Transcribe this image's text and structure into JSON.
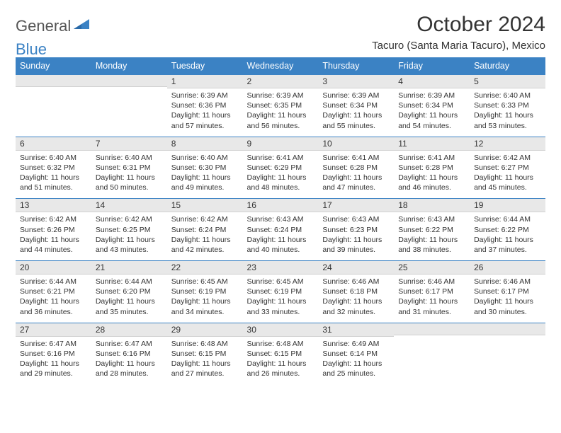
{
  "logo": {
    "textA": "General",
    "textB": "Blue"
  },
  "title": "October 2024",
  "location": "Tacuro (Santa Maria Tacuro), Mexico",
  "colors": {
    "header_bg": "#3b82c4",
    "header_fg": "#ffffff",
    "daynum_bg": "#e8e8e8",
    "rule": "#3b82c4",
    "text": "#333333"
  },
  "day_names": [
    "Sunday",
    "Monday",
    "Tuesday",
    "Wednesday",
    "Thursday",
    "Friday",
    "Saturday"
  ],
  "weeks": [
    [
      null,
      null,
      {
        "n": "1",
        "sr": "6:39 AM",
        "ss": "6:36 PM",
        "dl": "11 hours and 57 minutes."
      },
      {
        "n": "2",
        "sr": "6:39 AM",
        "ss": "6:35 PM",
        "dl": "11 hours and 56 minutes."
      },
      {
        "n": "3",
        "sr": "6:39 AM",
        "ss": "6:34 PM",
        "dl": "11 hours and 55 minutes."
      },
      {
        "n": "4",
        "sr": "6:39 AM",
        "ss": "6:34 PM",
        "dl": "11 hours and 54 minutes."
      },
      {
        "n": "5",
        "sr": "6:40 AM",
        "ss": "6:33 PM",
        "dl": "11 hours and 53 minutes."
      }
    ],
    [
      {
        "n": "6",
        "sr": "6:40 AM",
        "ss": "6:32 PM",
        "dl": "11 hours and 51 minutes."
      },
      {
        "n": "7",
        "sr": "6:40 AM",
        "ss": "6:31 PM",
        "dl": "11 hours and 50 minutes."
      },
      {
        "n": "8",
        "sr": "6:40 AM",
        "ss": "6:30 PM",
        "dl": "11 hours and 49 minutes."
      },
      {
        "n": "9",
        "sr": "6:41 AM",
        "ss": "6:29 PM",
        "dl": "11 hours and 48 minutes."
      },
      {
        "n": "10",
        "sr": "6:41 AM",
        "ss": "6:28 PM",
        "dl": "11 hours and 47 minutes."
      },
      {
        "n": "11",
        "sr": "6:41 AM",
        "ss": "6:28 PM",
        "dl": "11 hours and 46 minutes."
      },
      {
        "n": "12",
        "sr": "6:42 AM",
        "ss": "6:27 PM",
        "dl": "11 hours and 45 minutes."
      }
    ],
    [
      {
        "n": "13",
        "sr": "6:42 AM",
        "ss": "6:26 PM",
        "dl": "11 hours and 44 minutes."
      },
      {
        "n": "14",
        "sr": "6:42 AM",
        "ss": "6:25 PM",
        "dl": "11 hours and 43 minutes."
      },
      {
        "n": "15",
        "sr": "6:42 AM",
        "ss": "6:24 PM",
        "dl": "11 hours and 42 minutes."
      },
      {
        "n": "16",
        "sr": "6:43 AM",
        "ss": "6:24 PM",
        "dl": "11 hours and 40 minutes."
      },
      {
        "n": "17",
        "sr": "6:43 AM",
        "ss": "6:23 PM",
        "dl": "11 hours and 39 minutes."
      },
      {
        "n": "18",
        "sr": "6:43 AM",
        "ss": "6:22 PM",
        "dl": "11 hours and 38 minutes."
      },
      {
        "n": "19",
        "sr": "6:44 AM",
        "ss": "6:22 PM",
        "dl": "11 hours and 37 minutes."
      }
    ],
    [
      {
        "n": "20",
        "sr": "6:44 AM",
        "ss": "6:21 PM",
        "dl": "11 hours and 36 minutes."
      },
      {
        "n": "21",
        "sr": "6:44 AM",
        "ss": "6:20 PM",
        "dl": "11 hours and 35 minutes."
      },
      {
        "n": "22",
        "sr": "6:45 AM",
        "ss": "6:19 PM",
        "dl": "11 hours and 34 minutes."
      },
      {
        "n": "23",
        "sr": "6:45 AM",
        "ss": "6:19 PM",
        "dl": "11 hours and 33 minutes."
      },
      {
        "n": "24",
        "sr": "6:46 AM",
        "ss": "6:18 PM",
        "dl": "11 hours and 32 minutes."
      },
      {
        "n": "25",
        "sr": "6:46 AM",
        "ss": "6:17 PM",
        "dl": "11 hours and 31 minutes."
      },
      {
        "n": "26",
        "sr": "6:46 AM",
        "ss": "6:17 PM",
        "dl": "11 hours and 30 minutes."
      }
    ],
    [
      {
        "n": "27",
        "sr": "6:47 AM",
        "ss": "6:16 PM",
        "dl": "11 hours and 29 minutes."
      },
      {
        "n": "28",
        "sr": "6:47 AM",
        "ss": "6:16 PM",
        "dl": "11 hours and 28 minutes."
      },
      {
        "n": "29",
        "sr": "6:48 AM",
        "ss": "6:15 PM",
        "dl": "11 hours and 27 minutes."
      },
      {
        "n": "30",
        "sr": "6:48 AM",
        "ss": "6:15 PM",
        "dl": "11 hours and 26 minutes."
      },
      {
        "n": "31",
        "sr": "6:49 AM",
        "ss": "6:14 PM",
        "dl": "11 hours and 25 minutes."
      },
      null,
      null
    ]
  ],
  "labels": {
    "sunrise": "Sunrise:",
    "sunset": "Sunset:",
    "daylight": "Daylight:"
  }
}
